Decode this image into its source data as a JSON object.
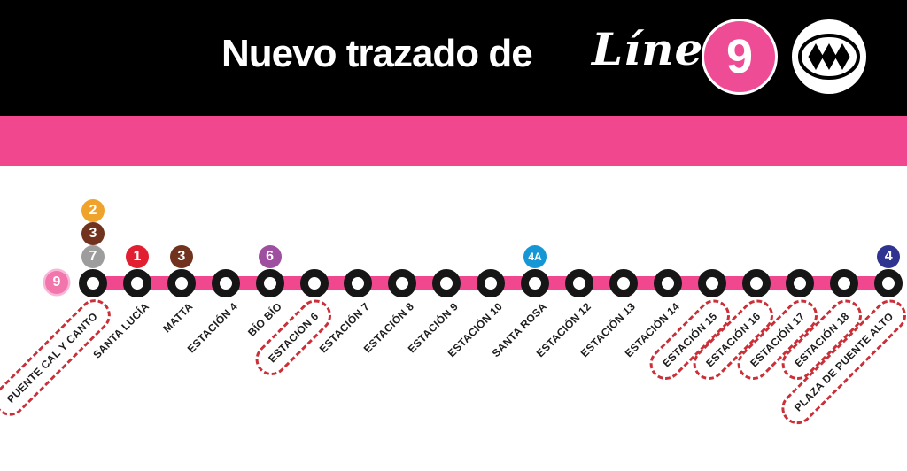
{
  "header": {
    "title": "Nuevo trazado de",
    "line_word": "Línea",
    "line_number": "9",
    "logo_icon": "metro-de-santiago-logo",
    "background": "#000000",
    "line_badge_color": "#EE4D96"
  },
  "banner": {
    "color": "#F0478F"
  },
  "diagram": {
    "line_color": "#F0478F",
    "highlight_outline_color": "#CB2F38",
    "terminal_badge": {
      "label": "9",
      "color": "#F275AC"
    },
    "stations": [
      {
        "name": "PUENTE CAL Y CANTO",
        "highlighted": true,
        "transfers": [
          {
            "label": "2",
            "color": "#F0A32A"
          },
          {
            "label": "3",
            "color": "#71331E"
          },
          {
            "label": "7",
            "color": "#9D9D9D"
          }
        ]
      },
      {
        "name": "SANTA LUCÍA",
        "highlighted": false,
        "transfers": [
          {
            "label": "1",
            "color": "#E11F30"
          }
        ]
      },
      {
        "name": "MATTA",
        "highlighted": false,
        "transfers": [
          {
            "label": "3",
            "color": "#71331E"
          }
        ]
      },
      {
        "name": "ESTACIÓN 4",
        "highlighted": false,
        "transfers": []
      },
      {
        "name": "BÍO BÍO",
        "highlighted": false,
        "transfers": [
          {
            "label": "6",
            "color": "#9E4F9F"
          }
        ]
      },
      {
        "name": "ESTACIÓN 6",
        "highlighted": true,
        "transfers": []
      },
      {
        "name": "ESTACIÓN 7",
        "highlighted": false,
        "transfers": []
      },
      {
        "name": "ESTACIÓN 8",
        "highlighted": false,
        "transfers": []
      },
      {
        "name": "ESTACIÓN 9",
        "highlighted": false,
        "transfers": []
      },
      {
        "name": "ESTACIÓN 10",
        "highlighted": false,
        "transfers": []
      },
      {
        "name": "SANTA ROSA",
        "highlighted": false,
        "transfers": [
          {
            "label": "4A",
            "color": "#1697D5"
          }
        ]
      },
      {
        "name": "ESTACIÓN 12",
        "highlighted": false,
        "transfers": []
      },
      {
        "name": "ESTACIÓN 13",
        "highlighted": false,
        "transfers": []
      },
      {
        "name": "ESTACIÓN 14",
        "highlighted": false,
        "transfers": []
      },
      {
        "name": "ESTACIÓN 15",
        "highlighted": true,
        "transfers": []
      },
      {
        "name": "ESTACIÓN 16",
        "highlighted": true,
        "transfers": []
      },
      {
        "name": "ESTACIÓN 17",
        "highlighted": true,
        "transfers": []
      },
      {
        "name": "ESTACIÓN 18",
        "highlighted": true,
        "transfers": []
      },
      {
        "name": "PLAZA DE PUENTE ALTO",
        "highlighted": true,
        "transfers": [
          {
            "label": "4",
            "color": "#2F3491"
          }
        ]
      }
    ]
  }
}
